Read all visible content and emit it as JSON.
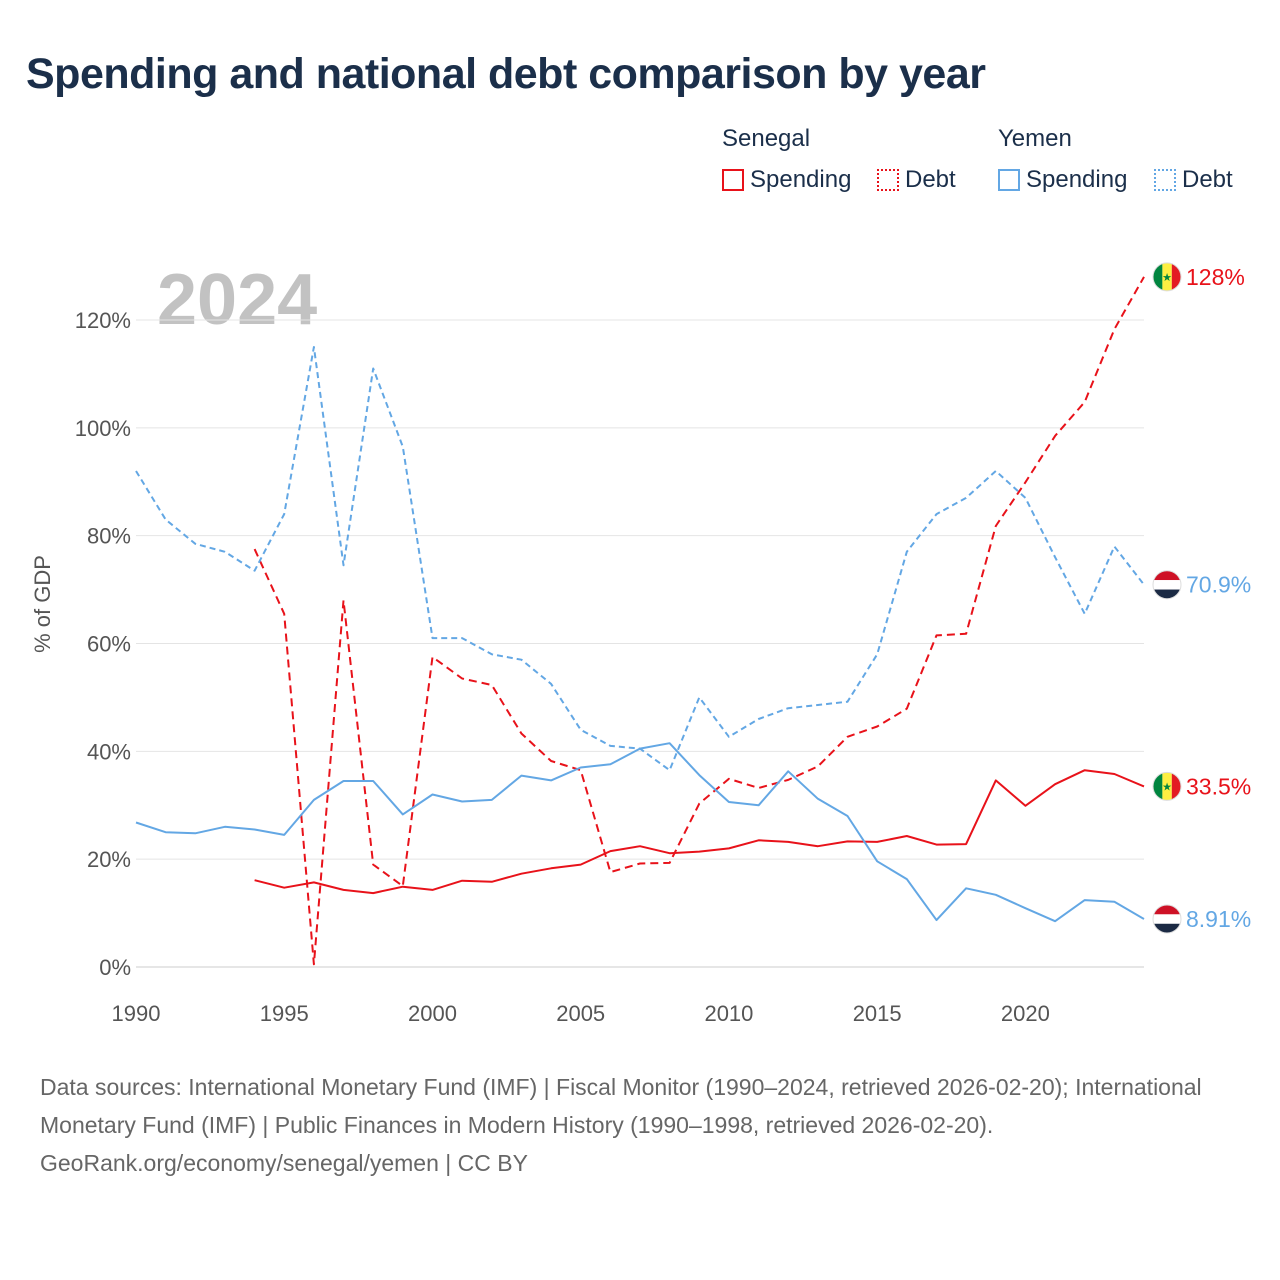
{
  "title": "Spending and national debt comparison by year",
  "legend": {
    "senegal": {
      "label": "Senegal",
      "spending": "Spending",
      "debt": "Debt"
    },
    "yemen": {
      "label": "Yemen",
      "spending": "Spending",
      "debt": "Debt"
    }
  },
  "colors": {
    "senegal": "#e8121a",
    "yemen": "#63a7e4",
    "grid": "#e4e4e4",
    "axis": "#cccccc"
  },
  "chart_data": {
    "type": "line",
    "title": "Spending and national debt comparison by year",
    "year_display": "2024",
    "xlabel": "",
    "ylabel": "% of GDP",
    "xlim": [
      1990,
      2024
    ],
    "ylim": [
      0,
      130
    ],
    "x_ticks": [
      1990,
      1995,
      2000,
      2005,
      2010,
      2015,
      2020
    ],
    "y_ticks": [
      0,
      20,
      40,
      60,
      80,
      100,
      120
    ],
    "y_tick_labels": [
      "0%",
      "20%",
      "40%",
      "60%",
      "80%",
      "100%",
      "120%"
    ],
    "grid": true,
    "legend_position": "top-right",
    "series": [
      {
        "name": "Senegal Spending",
        "country": "senegal",
        "style": "solid",
        "x": [
          1994,
          1995,
          1996,
          1997,
          1998,
          1999,
          2000,
          2001,
          2002,
          2003,
          2004,
          2005,
          2006,
          2007,
          2008,
          2009,
          2010,
          2011,
          2012,
          2013,
          2014,
          2015,
          2016,
          2017,
          2018,
          2019,
          2020,
          2021,
          2022,
          2023,
          2024
        ],
        "values": [
          16.1,
          14.7,
          15.7,
          14.3,
          13.7,
          14.9,
          14.3,
          16.0,
          15.8,
          17.3,
          18.3,
          19.0,
          21.5,
          22.4,
          21.1,
          21.4,
          22.0,
          23.5,
          23.2,
          22.4,
          23.3,
          23.2,
          24.3,
          22.7,
          22.8,
          34.6,
          29.9,
          33.9,
          36.5,
          35.8,
          33.5
        ],
        "end_label": "33.5%"
      },
      {
        "name": "Senegal Debt",
        "country": "senegal",
        "style": "dashed",
        "x": [
          1994,
          1995,
          1996,
          1997,
          1998,
          1999,
          2000,
          2001,
          2002,
          2003,
          2004,
          2005,
          2006,
          2007,
          2008,
          2009,
          2010,
          2011,
          2012,
          2013,
          2014,
          2015,
          2016,
          2017,
          2018,
          2019,
          2020,
          2021,
          2022,
          2023,
          2024
        ],
        "values": [
          77.5,
          65.5,
          0.5,
          68.0,
          19.0,
          15.0,
          57.5,
          53.5,
          52.3,
          43.3,
          38.2,
          36.5,
          17.6,
          19.2,
          19.3,
          30.3,
          34.9,
          33.2,
          34.7,
          37.2,
          42.7,
          44.6,
          47.9,
          61.5,
          61.8,
          81.8,
          89.9,
          98.5,
          104.8,
          118.3,
          128.0
        ],
        "end_label": "128%"
      },
      {
        "name": "Yemen Spending",
        "country": "yemen",
        "style": "solid",
        "x": [
          1990,
          1991,
          1992,
          1993,
          1994,
          1995,
          1996,
          1997,
          1998,
          1999,
          2000,
          2001,
          2002,
          2003,
          2004,
          2005,
          2006,
          2007,
          2008,
          2009,
          2010,
          2011,
          2012,
          2013,
          2014,
          2015,
          2016,
          2017,
          2018,
          2019,
          2020,
          2021,
          2022,
          2023,
          2024
        ],
        "values": [
          26.8,
          25.0,
          24.8,
          26.0,
          25.5,
          24.5,
          31.0,
          34.5,
          34.5,
          28.3,
          32.0,
          30.7,
          31.0,
          35.5,
          34.6,
          37.0,
          37.6,
          40.5,
          41.5,
          35.6,
          30.6,
          30.0,
          36.3,
          31.2,
          28.0,
          19.6,
          16.3,
          8.7,
          14.6,
          13.4,
          10.9,
          8.5,
          12.4,
          12.1,
          8.91
        ],
        "end_label": "8.91%"
      },
      {
        "name": "Yemen Debt",
        "country": "yemen",
        "style": "dotted",
        "x": [
          1990,
          1991,
          1992,
          1993,
          1994,
          1995,
          1996,
          1997,
          1998,
          1999,
          2000,
          2001,
          2002,
          2003,
          2004,
          2005,
          2006,
          2007,
          2008,
          2009,
          2010,
          2011,
          2012,
          2013,
          2014,
          2015,
          2016,
          2017,
          2018,
          2019,
          2020,
          2021,
          2022,
          2023,
          2024
        ],
        "values": [
          92.0,
          83.0,
          78.5,
          77.0,
          73.5,
          84.0,
          115.0,
          74.5,
          111.0,
          96.5,
          61.0,
          61.0,
          58.0,
          57.0,
          52.5,
          44.0,
          41.0,
          40.5,
          36.5,
          50.0,
          42.7,
          46.0,
          48.0,
          48.6,
          49.2,
          58.0,
          77.0,
          84.0,
          87.0,
          92.0,
          87.0,
          76.0,
          65.5,
          78.0,
          70.9
        ],
        "end_label": "70.9%"
      }
    ]
  },
  "footer": {
    "sources": "Data sources: International Monetary Fund (IMF) | Fiscal Monitor (1990–2024, retrieved 2026-02-20); International Monetary Fund (IMF) | Public Finances in Modern History (1990–1998, retrieved 2026-02-20).",
    "credit": "GeoRank.org/economy/senegal/yemen | CC BY"
  }
}
